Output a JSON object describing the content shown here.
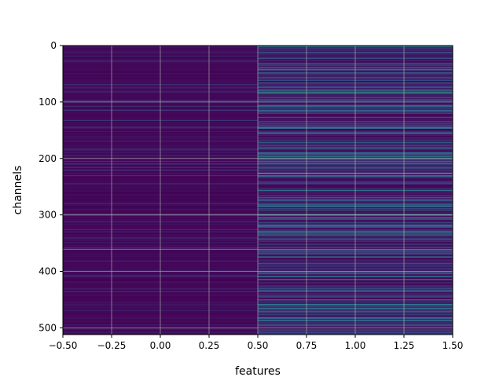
{
  "chart_data": {
    "type": "heatmap",
    "title": "",
    "xlabel": "features",
    "ylabel": "channels",
    "xlim": [
      -0.5,
      1.5
    ],
    "ylim": [
      512,
      0
    ],
    "y_inverted": true,
    "xticks": [
      "−0.50",
      "−0.25",
      "0.00",
      "0.25",
      "0.50",
      "0.75",
      "1.00",
      "1.25",
      "1.50"
    ],
    "xtick_values": [
      -0.5,
      -0.25,
      0.0,
      0.25,
      0.5,
      0.75,
      1.0,
      1.25,
      1.5
    ],
    "yticks": [
      "0",
      "100",
      "200",
      "300",
      "400",
      "500"
    ],
    "ytick_values": [
      0,
      100,
      200,
      300,
      400,
      500
    ],
    "grid": true,
    "colormap": "viridis",
    "n_rows": 512,
    "columns": [
      0,
      1
    ],
    "highlight_rows": [
      {
        "row": 361,
        "col0": 0.62,
        "col1": 0.6
      },
      {
        "row": 226,
        "col0": 0.08,
        "col1": 0.85
      },
      {
        "row": 83,
        "col0": 0.12,
        "col1": 0.55
      },
      {
        "row": 118,
        "col0": 0.08,
        "col1": 0.5
      },
      {
        "row": 190,
        "col0": 0.1,
        "col1": 0.48
      },
      {
        "row": 210,
        "col0": 0.22,
        "col1": 0.45
      },
      {
        "row": 291,
        "col0": 0.08,
        "col1": 0.5
      },
      {
        "row": 330,
        "col0": 0.15,
        "col1": 0.42
      },
      {
        "row": 410,
        "col0": 0.18,
        "col1": 0.38
      },
      {
        "row": 458,
        "col0": 0.1,
        "col1": 0.45
      },
      {
        "row": 495,
        "col0": 0.1,
        "col1": 0.5
      }
    ],
    "colors": {
      "cmap_low": "#440154",
      "cmap_mid": "#21918c",
      "cmap_high": "#fde725",
      "grid": "#b0b0b0"
    }
  }
}
